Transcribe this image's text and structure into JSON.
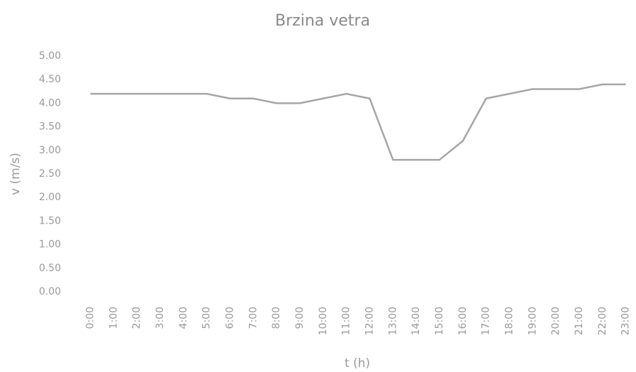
{
  "chart_data": {
    "type": "line",
    "title": "Brzina vetra",
    "x_label": "t (h)",
    "y_label": "v (m/s)",
    "categories": [
      "0:00",
      "1:00",
      "2:00",
      "3:00",
      "4:00",
      "5:00",
      "6:00",
      "7:00",
      "8:00",
      "9:00",
      "10:00",
      "11:00",
      "12:00",
      "13:00",
      "14:00",
      "15:00",
      "16:00",
      "17:00",
      "18:00",
      "19:00",
      "20:00",
      "21:00",
      "22:00",
      "23:00"
    ],
    "series": [
      {
        "name": "v",
        "color": "#a6a6a6",
        "values": [
          4.2,
          4.2,
          4.2,
          4.2,
          4.2,
          4.2,
          4.1,
          4.1,
          4.0,
          4.0,
          4.1,
          4.2,
          4.1,
          2.8,
          2.8,
          2.8,
          3.2,
          4.1,
          4.2,
          4.3,
          4.3,
          4.3,
          4.4,
          4.4
        ]
      }
    ],
    "ylim": [
      0,
      5
    ],
    "yticks": [
      {
        "value": 0,
        "label": "0.00"
      },
      {
        "value": 0.5,
        "label": "0.50"
      },
      {
        "value": 1,
        "label": "1.00"
      },
      {
        "value": 1.5,
        "label": "1.50"
      },
      {
        "value": 2,
        "label": "2.00"
      },
      {
        "value": 2.5,
        "label": "2.50"
      },
      {
        "value": 3,
        "label": "3.00"
      },
      {
        "value": 3.5,
        "label": "3.50"
      },
      {
        "value": 4,
        "label": "4.00"
      },
      {
        "value": 4.5,
        "label": "4.50"
      },
      {
        "value": 5,
        "label": "5.00"
      }
    ],
    "grid": false
  }
}
